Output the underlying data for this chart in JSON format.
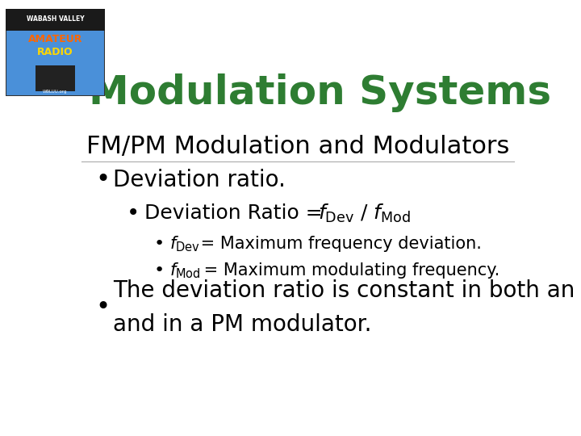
{
  "title": "Modulation Systems",
  "title_color": "#2E7D32",
  "title_fontsize": 36,
  "title_fontstyle": "bold",
  "bg_color": "#ffffff",
  "heading": "FM/PM Modulation and Modulators",
  "heading_fontsize": 22,
  "heading_color": "#000000",
  "bullet1": "Deviation ratio.",
  "bullet1_fontsize": 20,
  "bullet2_prefix": "Deviation Ratio = ",
  "bullet2_fontsize": 18,
  "sub_bullet1_text": " = Maximum frequency deviation.",
  "sub_bullet2_text": " = Maximum modulating frequency.",
  "sub_bullet_fontsize": 15,
  "bullet3_line1": "The deviation ratio is constant in both an FM modulator",
  "bullet3_line2": "and in a PM modulator.",
  "bullet3_fontsize": 20,
  "black": "#000000",
  "dark_green": "#2E7D32"
}
